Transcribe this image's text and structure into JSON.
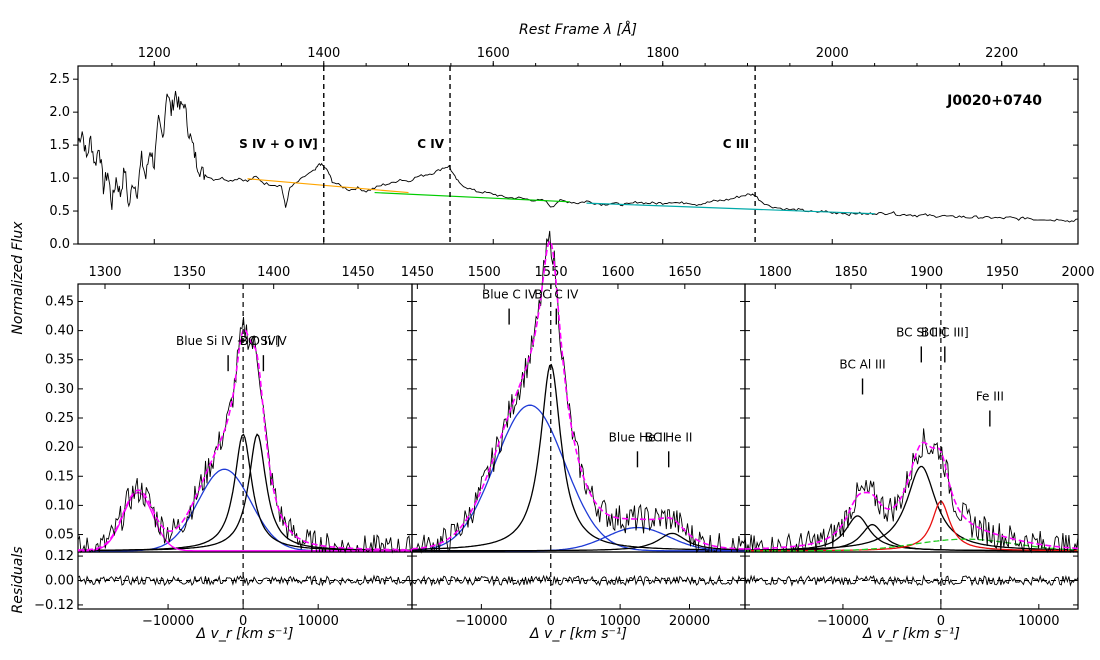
{
  "chart_data": {
    "type": "line",
    "figure": {
      "ylabel_left": "Normalized Flux",
      "residuals_label": "Residuals"
    },
    "top_panel": {
      "title": "Rest Frame λ [Å]",
      "object_name": "J0020+0740",
      "xlim": [
        1110,
        2290
      ],
      "ylim": [
        0.0,
        2.7
      ],
      "xticks": [
        1200,
        1400,
        1600,
        1800,
        2000,
        2200
      ],
      "yticks": [
        0.0,
        0.5,
        1.0,
        1.5,
        2.0,
        2.5
      ],
      "ytick_labels": [
        "0.0",
        "0.5",
        "1.0",
        "1.5",
        "2.0",
        "2.5"
      ],
      "line_markers": [
        {
          "label": "S IV + O IV]",
          "wavelength": 1400
        },
        {
          "label": "C IV",
          "wavelength": 1549
        },
        {
          "label": "C III",
          "wavelength": 1909
        }
      ],
      "spectrum": [
        [
          1110,
          1.55
        ],
        [
          1115,
          1.72
        ],
        [
          1120,
          1.3
        ],
        [
          1125,
          1.6
        ],
        [
          1130,
          1.2
        ],
        [
          1135,
          1.5
        ],
        [
          1140,
          0.85
        ],
        [
          1145,
          1.1
        ],
        [
          1150,
          0.6
        ],
        [
          1155,
          1.0
        ],
        [
          1160,
          0.75
        ],
        [
          1165,
          1.15
        ],
        [
          1170,
          0.55
        ],
        [
          1175,
          0.95
        ],
        [
          1180,
          0.8
        ],
        [
          1185,
          1.3
        ],
        [
          1190,
          1.0
        ],
        [
          1195,
          1.45
        ],
        [
          1200,
          1.2
        ],
        [
          1205,
          1.85
        ],
        [
          1210,
          1.6
        ],
        [
          1215,
          2.35
        ],
        [
          1220,
          2.0
        ],
        [
          1225,
          2.3
        ],
        [
          1230,
          2.05
        ],
        [
          1235,
          2.15
        ],
        [
          1240,
          1.75
        ],
        [
          1245,
          1.5
        ],
        [
          1250,
          1.25
        ],
        [
          1255,
          1.1
        ],
        [
          1260,
          1.05
        ],
        [
          1270,
          0.98
        ],
        [
          1280,
          1.0
        ],
        [
          1290,
          0.96
        ],
        [
          1300,
          1.0
        ],
        [
          1310,
          0.95
        ],
        [
          1320,
          1.02
        ],
        [
          1330,
          0.92
        ],
        [
          1340,
          0.9
        ],
        [
          1350,
          0.88
        ],
        [
          1355,
          0.55
        ],
        [
          1360,
          0.85
        ],
        [
          1370,
          0.95
        ],
        [
          1380,
          1.05
        ],
        [
          1390,
          1.12
        ],
        [
          1395,
          1.22
        ],
        [
          1400,
          1.18
        ],
        [
          1405,
          1.1
        ],
        [
          1410,
          0.95
        ],
        [
          1420,
          0.88
        ],
        [
          1430,
          0.82
        ],
        [
          1440,
          0.85
        ],
        [
          1450,
          0.8
        ],
        [
          1460,
          0.85
        ],
        [
          1470,
          0.9
        ],
        [
          1480,
          0.92
        ],
        [
          1490,
          0.98
        ],
        [
          1500,
          0.95
        ],
        [
          1510,
          1.02
        ],
        [
          1520,
          1.05
        ],
        [
          1530,
          1.08
        ],
        [
          1540,
          1.15
        ],
        [
          1548,
          1.18
        ],
        [
          1553,
          1.05
        ],
        [
          1560,
          0.92
        ],
        [
          1570,
          0.85
        ],
        [
          1580,
          0.8
        ],
        [
          1590,
          0.78
        ],
        [
          1600,
          0.76
        ],
        [
          1610,
          0.72
        ],
        [
          1620,
          0.7
        ],
        [
          1630,
          0.7
        ],
        [
          1640,
          0.68
        ],
        [
          1650,
          0.66
        ],
        [
          1660,
          0.66
        ],
        [
          1670,
          0.55
        ],
        [
          1675,
          0.64
        ],
        [
          1680,
          0.66
        ],
        [
          1690,
          0.64
        ],
        [
          1700,
          0.62
        ],
        [
          1710,
          0.65
        ],
        [
          1720,
          0.62
        ],
        [
          1730,
          0.6
        ],
        [
          1740,
          0.62
        ],
        [
          1750,
          0.6
        ],
        [
          1760,
          0.6
        ],
        [
          1770,
          0.64
        ],
        [
          1780,
          0.62
        ],
        [
          1790,
          0.62
        ],
        [
          1800,
          0.62
        ],
        [
          1810,
          0.64
        ],
        [
          1820,
          0.62
        ],
        [
          1830,
          0.63
        ],
        [
          1840,
          0.6
        ],
        [
          1850,
          0.62
        ],
        [
          1860,
          0.65
        ],
        [
          1870,
          0.66
        ],
        [
          1880,
          0.68
        ],
        [
          1890,
          0.72
        ],
        [
          1900,
          0.75
        ],
        [
          1908,
          0.75
        ],
        [
          1915,
          0.66
        ],
        [
          1925,
          0.58
        ],
        [
          1935,
          0.55
        ],
        [
          1950,
          0.52
        ],
        [
          1960,
          0.52
        ],
        [
          1970,
          0.5
        ],
        [
          1980,
          0.48
        ],
        [
          1990,
          0.5
        ],
        [
          2000,
          0.47
        ],
        [
          2010,
          0.48
        ],
        [
          2020,
          0.45
        ],
        [
          2030,
          0.47
        ],
        [
          2040,
          0.45
        ],
        [
          2050,
          0.47
        ],
        [
          2060,
          0.46
        ],
        [
          2070,
          0.48
        ],
        [
          2080,
          0.44
        ],
        [
          2090,
          0.45
        ],
        [
          2100,
          0.43
        ],
        [
          2110,
          0.44
        ],
        [
          2120,
          0.42
        ],
        [
          2130,
          0.43
        ],
        [
          2140,
          0.41
        ],
        [
          2150,
          0.42
        ],
        [
          2160,
          0.4
        ],
        [
          2170,
          0.41
        ],
        [
          2180,
          0.4
        ],
        [
          2190,
          0.4
        ],
        [
          2200,
          0.39
        ],
        [
          2210,
          0.4
        ],
        [
          2220,
          0.38
        ],
        [
          2230,
          0.4
        ],
        [
          2240,
          0.37
        ],
        [
          2250,
          0.38
        ],
        [
          2260,
          0.36
        ],
        [
          2270,
          0.38
        ],
        [
          2280,
          0.34
        ],
        [
          2290,
          0.38
        ]
      ],
      "continua": [
        {
          "color": "#ffa500",
          "from": [
            1310,
            0.99
          ],
          "to": [
            1500,
            0.78
          ]
        },
        {
          "color": "#00cc00",
          "from": [
            1460,
            0.78
          ],
          "to": [
            1690,
            0.64
          ]
        },
        {
          "color": "#00aaaa",
          "from": [
            1710,
            0.62
          ],
          "to": [
            2050,
            0.46
          ]
        }
      ]
    },
    "bottom_panels": {
      "ylim": [
        0.02,
        0.48
      ],
      "yticks": [
        0.05,
        0.1,
        0.15,
        0.2,
        0.25,
        0.3,
        0.35,
        0.4,
        0.45
      ],
      "ytick_labels": [
        "0.05",
        "0.10",
        "0.15",
        "0.20",
        "0.25",
        "0.30",
        "0.35",
        "0.40",
        "0.45"
      ],
      "residual_ylim": [
        -0.14,
        0.14
      ],
      "residual_yticks": [
        0.12,
        0.0,
        -0.12
      ],
      "residual_ytick_labels": [
        "0.12",
        "0.00",
        "−0.12"
      ],
      "xlabel": "Δ v_r [km s⁻¹]",
      "panels": [
        {
          "name": "Si IV region",
          "vlim": [
            -22000,
            22500
          ],
          "vticks": [
            -10000,
            0,
            10000
          ],
          "vtick_labels": [
            "−10000",
            "0",
            "10000"
          ],
          "top_ticks": [
            1300,
            1350,
            1400,
            1450
          ],
          "top_tick_labels": [
            "1300",
            "1350",
            "1400",
            "1450"
          ],
          "top_lambda_range": [
            1284,
            1482
          ],
          "labels": [
            {
              "text": "Blue Si IV + O IV]",
              "v": -2000,
              "y": 0.375
            },
            {
              "text": "BC Si IV",
              "v": 2700,
              "y": 0.375
            }
          ],
          "components": [
            {
              "name": "Blue",
              "color": "#1f3bd6",
              "center": -2500,
              "amp": 0.14,
              "sigma": 3500,
              "type": "gauss"
            },
            {
              "name": "BC1",
              "color": "#000000",
              "center": 0,
              "amp": 0.2,
              "sigma": 1400,
              "type": "lorentz"
            },
            {
              "name": "BC2",
              "color": "#000000",
              "center": 1900,
              "amp": 0.2,
              "sigma": 1400,
              "type": "lorentz"
            },
            {
              "name": "Blob",
              "color": "#ff00ff",
              "center": -14000,
              "amp": 0.1,
              "sigma": 2000,
              "type": "gauss"
            }
          ]
        },
        {
          "name": "C IV region",
          "vlim": [
            -20000,
            28000
          ],
          "vticks": [
            -10000,
            0,
            10000,
            20000
          ],
          "vtick_labels": [
            "−10000",
            "0",
            "10000",
            "20000"
          ],
          "top_ticks": [
            1450,
            1500,
            1550,
            1600,
            1650
          ],
          "top_tick_labels": [
            "1450",
            "1500",
            "1550",
            "1600",
            "1650"
          ],
          "top_lambda_range": [
            1446,
            1695
          ],
          "labels": [
            {
              "text": "Blue C IV",
              "v": -6000,
              "y": 0.455
            },
            {
              "text": "BC C IV",
              "v": 800,
              "y": 0.455
            },
            {
              "text": "Blue He II",
              "v": 12500,
              "y": 0.21
            },
            {
              "text": "BC He II",
              "v": 17000,
              "y": 0.21
            }
          ],
          "components": [
            {
              "name": "Blue C IV",
              "color": "#1f3bd6",
              "center": -3000,
              "amp": 0.25,
              "sigma": 5000,
              "type": "gauss"
            },
            {
              "name": "BC C IV",
              "color": "#000000",
              "center": 0,
              "amp": 0.32,
              "sigma": 1800,
              "type": "lorentz"
            },
            {
              "name": "Blue He II",
              "color": "#1f3bd6",
              "center": 12500,
              "amp": 0.04,
              "sigma": 4500,
              "type": "gauss"
            },
            {
              "name": "BC He II",
              "color": "#000000",
              "center": 17500,
              "amp": 0.03,
              "sigma": 2500,
              "type": "lorentz"
            }
          ]
        },
        {
          "name": "C III region",
          "vlim": [
            -20000,
            14000
          ],
          "vticks": [
            -10000,
            0,
            10000
          ],
          "vtick_labels": [
            "−10000",
            "0",
            "10000"
          ],
          "top_ticks": [
            1800,
            1850,
            1900,
            1950,
            2000
          ],
          "top_tick_labels": [
            "1800",
            "1850",
            "1900",
            "1950",
            "2000"
          ],
          "top_lambda_range": [
            1780,
            2000
          ],
          "labels": [
            {
              "text": "BC Si III]",
              "v": -2000,
              "y": 0.39
            },
            {
              "text": "BC C III]",
              "v": 400,
              "y": 0.39
            },
            {
              "text": "BC Al III",
              "v": -8000,
              "y": 0.335
            },
            {
              "text": "Fe III",
              "v": 5000,
              "y": 0.28
            }
          ],
          "components": [
            {
              "name": "BC Al III a",
              "color": "#000000",
              "center": -8500,
              "amp": 0.06,
              "sigma": 1500,
              "type": "lorentz"
            },
            {
              "name": "BC Al III b",
              "color": "#000000",
              "center": -7000,
              "amp": 0.045,
              "sigma": 1400,
              "type": "lorentz"
            },
            {
              "name": "BC Si III]",
              "color": "#000000",
              "center": -2000,
              "amp": 0.145,
              "sigma": 1800,
              "type": "lorentz"
            },
            {
              "name": "BC C III]",
              "color": "#e81010",
              "center": 0,
              "amp": 0.085,
              "sigma": 1100,
              "type": "lorentz"
            },
            {
              "name": "Fe III",
              "color": "#22cc22",
              "center": 2500,
              "amp": 0.02,
              "sigma": 5000,
              "type": "gauss"
            }
          ]
        }
      ]
    }
  }
}
